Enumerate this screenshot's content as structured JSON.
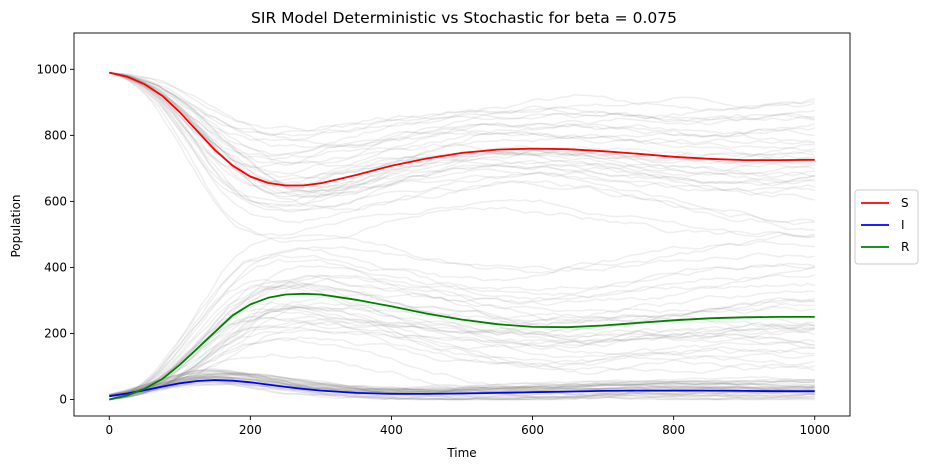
{
  "chart_data": {
    "type": "line",
    "title": "SIR Model Deterministic vs Stochastic for beta = 0.075",
    "xlabel": "Time",
    "ylabel": "Population",
    "xlim": [
      -50,
      1050
    ],
    "ylim": [
      -50,
      1110
    ],
    "xticks": [
      0,
      200,
      400,
      600,
      800,
      1000
    ],
    "yticks": [
      0,
      200,
      400,
      600,
      800,
      1000
    ],
    "legend_position": "center-right-outside",
    "series": [
      {
        "name": "S",
        "color": "#ff0000",
        "x": [
          0,
          25,
          50,
          75,
          100,
          125,
          150,
          175,
          200,
          225,
          250,
          275,
          300,
          350,
          400,
          450,
          500,
          550,
          600,
          650,
          700,
          750,
          800,
          850,
          900,
          950,
          1000
        ],
        "values": [
          990,
          978,
          955,
          920,
          870,
          812,
          755,
          708,
          675,
          656,
          648,
          648,
          655,
          680,
          708,
          730,
          747,
          757,
          760,
          758,
          752,
          744,
          735,
          729,
          725,
          725,
          726
        ]
      },
      {
        "name": "I",
        "color": "#0000ff",
        "x": [
          0,
          25,
          50,
          75,
          100,
          125,
          150,
          175,
          200,
          225,
          250,
          275,
          300,
          350,
          400,
          450,
          500,
          550,
          600,
          650,
          700,
          750,
          800,
          850,
          900,
          950,
          1000
        ],
        "values": [
          10,
          18,
          28,
          39,
          49,
          56,
          59,
          57,
          52,
          45,
          38,
          32,
          27,
          20,
          17,
          17,
          18,
          20,
          22,
          24,
          26,
          27,
          27,
          27,
          26,
          25,
          25
        ]
      },
      {
        "name": "R",
        "color": "#008000",
        "x": [
          0,
          25,
          50,
          75,
          100,
          125,
          150,
          175,
          200,
          225,
          250,
          275,
          300,
          350,
          400,
          450,
          500,
          550,
          600,
          650,
          700,
          750,
          800,
          850,
          900,
          950,
          1000
        ],
        "values": [
          0,
          12,
          32,
          62,
          105,
          155,
          205,
          255,
          288,
          308,
          318,
          320,
          318,
          302,
          282,
          260,
          242,
          228,
          220,
          219,
          224,
          232,
          240,
          246,
          249,
          250,
          250
        ]
      }
    ]
  }
}
